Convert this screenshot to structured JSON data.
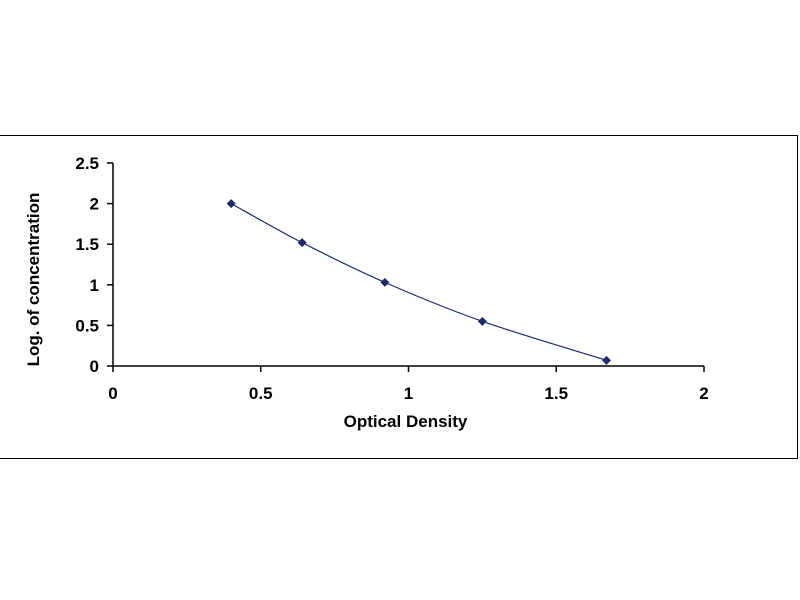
{
  "chart_data": {
    "type": "scatter",
    "title": "",
    "xlabel": "Optical Density",
    "ylabel": "Log. of concentration",
    "xlim": [
      0,
      2
    ],
    "ylim": [
      0,
      2.5
    ],
    "x_ticks": [
      "0",
      "0.5",
      "1",
      "1.5",
      "2"
    ],
    "y_ticks": [
      "0",
      "0.5",
      "1",
      "1.5",
      "2",
      "2.5"
    ],
    "grid": false,
    "legend": "none",
    "marker": "diamond",
    "colors": {
      "marker": "#1f2a6b",
      "line": "#1f2a6b",
      "axis": "#000000"
    },
    "series": [
      {
        "x": [
          0.4,
          0.64,
          0.92,
          1.25,
          1.67
        ],
        "y": [
          2.0,
          1.52,
          1.03,
          0.55,
          0.07
        ],
        "trendline": "smooth"
      }
    ]
  }
}
